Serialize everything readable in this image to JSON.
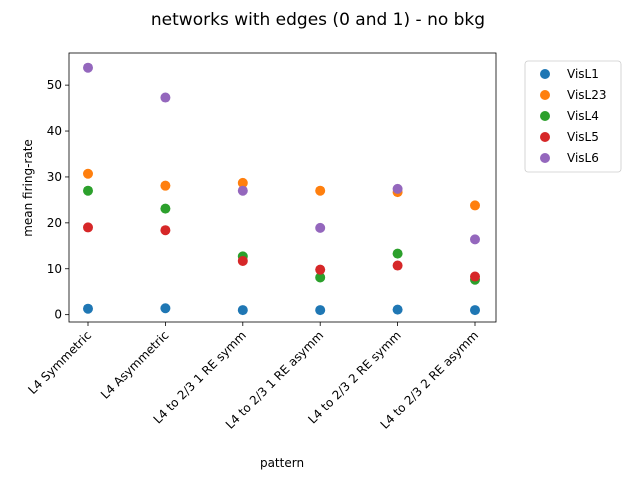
{
  "chart_data": {
    "type": "scatter",
    "title": "networks with edges (0 and 1) - no bkg",
    "xlabel": "pattern",
    "ylabel": "mean firing-rate",
    "categories": [
      "L4 Symmetric",
      "L4 Asymmetric",
      "L4 to 2/3 1 RE symm",
      "L4 to 2/3 1 RE asymm",
      "L4 to 2/3 2 RE symm",
      "L4 to 2/3 2 RE asymm"
    ],
    "ylim": [
      -1.6,
      57
    ],
    "yticks": [
      0,
      10,
      20,
      30,
      40,
      50
    ],
    "ytick_labels": [
      "0",
      "10",
      "20",
      "30",
      "40",
      "50"
    ],
    "grid": false,
    "legend_position": "outside-right",
    "series": [
      {
        "name": "VisL1",
        "color": "#1f77b4",
        "values": [
          1.3,
          1.4,
          1.0,
          1.0,
          1.1,
          1.0
        ]
      },
      {
        "name": "VisL23",
        "color": "#ff7f0e",
        "values": [
          30.7,
          28.1,
          28.7,
          27.0,
          26.7,
          23.8
        ]
      },
      {
        "name": "VisL4",
        "color": "#2ca02c",
        "values": [
          27.0,
          23.1,
          12.7,
          8.1,
          13.3,
          7.6
        ]
      },
      {
        "name": "VisL5",
        "color": "#d62728",
        "values": [
          19.0,
          18.4,
          11.7,
          9.8,
          10.7,
          8.3
        ]
      },
      {
        "name": "VisL6",
        "color": "#9467bd",
        "values": [
          53.8,
          47.3,
          27.0,
          18.9,
          27.4,
          16.4
        ]
      }
    ]
  }
}
